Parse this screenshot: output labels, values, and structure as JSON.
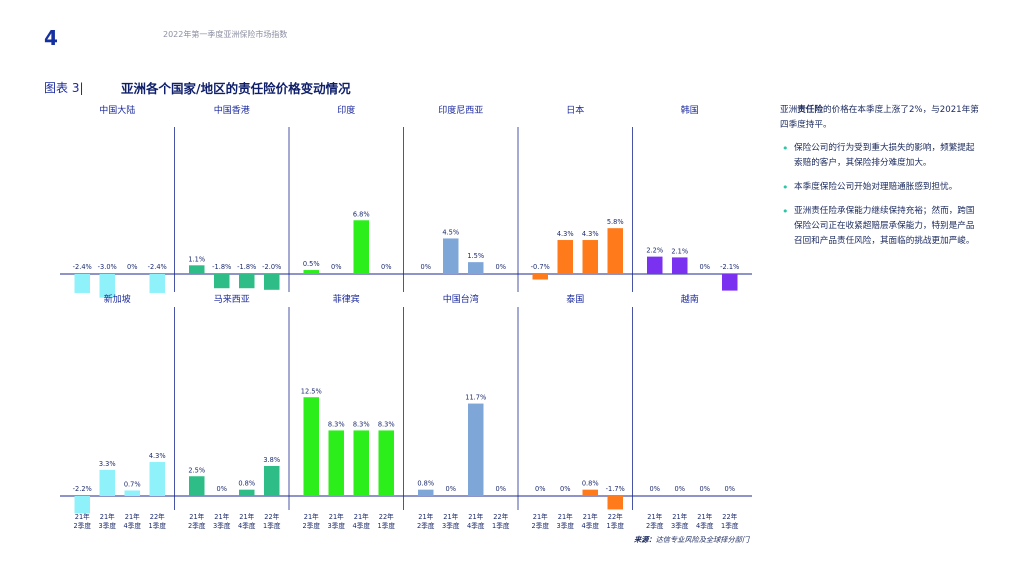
{
  "page": {
    "number": "4",
    "header": "2022年第一季度亚洲保险市场指数",
    "figure_label": "图表 3|",
    "figure_title": "亚洲各个国家/地区的责任险价格变动情况"
  },
  "sidebar": {
    "intro_pre": "亚洲",
    "intro_bold": "责任险",
    "intro_post": "的价格在本季度上涨了2%，与2021年第四季度持平。",
    "bullets": [
      "保险公司的行为受到重大损失的影响，频繁提起索赔的客户，其保险排分难度加大。",
      "本季度保险公司开始对理赔通胀感到担忧。",
      "亚洲责任险承保能力继续保持充裕；然而，跨国保险公司正在收紧超赔层承保能力，特别是产品召回和产品责任风险，其面临的挑战更加严峻。"
    ]
  },
  "source": {
    "label": "来源：",
    "text": "达信专业风险及全球择分部门"
  },
  "chart_data": {
    "type": "bar",
    "title": "亚洲各个国家/地区的责任险价格变动情况",
    "unit": "%",
    "categories": [
      "21年2季度",
      "21年3季度",
      "21年4季度",
      "22年1季度"
    ],
    "x_tick_lines": [
      [
        "21年",
        "2季度"
      ],
      [
        "21年",
        "3季度"
      ],
      [
        "21年",
        "4季度"
      ],
      [
        "22年",
        "1季度"
      ]
    ],
    "panels": [
      {
        "name": "中国大陆",
        "color": "#8ff2fa",
        "values": [
          -2.4,
          -3.0,
          0,
          -2.4
        ],
        "labels": [
          "-2.4%",
          "-3.0%",
          "0%",
          "-2.4%"
        ]
      },
      {
        "name": "中国香港",
        "color": "#2ebd86",
        "values": [
          1.1,
          -1.8,
          -1.8,
          -2.0
        ],
        "labels": [
          "1.1%",
          "-1.8%",
          "-1.8%",
          "-2.0%"
        ]
      },
      {
        "name": "印度",
        "color": "#2cee1a",
        "values": [
          0.5,
          0,
          6.8,
          0
        ],
        "labels": [
          "0.5%",
          "0%",
          "6.8%",
          "0%"
        ]
      },
      {
        "name": "印度尼西亚",
        "color": "#7ea7d8",
        "values": [
          0,
          4.5,
          1.5,
          0
        ],
        "labels": [
          "0%",
          "4.5%",
          "1.5%",
          "0%"
        ]
      },
      {
        "name": "日本",
        "color": "#ff7a1a",
        "values": [
          -0.7,
          4.3,
          4.3,
          5.8
        ],
        "labels": [
          "-0.7%",
          "4.3%",
          "4.3%",
          "5.8%"
        ]
      },
      {
        "name": "韩国",
        "color": "#7a32f0",
        "values": [
          2.2,
          2.1,
          0,
          -2.1
        ],
        "labels": [
          "2.2%",
          "2.1%",
          "0%",
          "-2.1%"
        ]
      },
      {
        "name": "新加坡",
        "color": "#8ff2fa",
        "values": [
          -2.2,
          3.3,
          0.7,
          4.3
        ],
        "labels": [
          "-2.2%",
          "3.3%",
          "0.7%",
          "4.3%"
        ]
      },
      {
        "name": "马来西亚",
        "color": "#2ebd86",
        "values": [
          2.5,
          0,
          0.8,
          3.8
        ],
        "labels": [
          "2.5%",
          "0%",
          "0.8%",
          "3.8%"
        ]
      },
      {
        "name": "菲律宾",
        "color": "#2cee1a",
        "values": [
          12.5,
          8.3,
          8.3,
          8.3
        ],
        "labels": [
          "12.5%",
          "8.3%",
          "8.3%",
          "8.3%"
        ]
      },
      {
        "name": "中国台湾",
        "color": "#7ea7d8",
        "values": [
          0.8,
          0,
          11.7,
          0
        ],
        "labels": [
          "0.8%",
          "0%",
          "11.7%",
          "0%"
        ]
      },
      {
        "name": "泰国",
        "color": "#ff7a1a",
        "values": [
          0,
          0,
          0.8,
          -1.7
        ],
        "labels": [
          "0%",
          "0%",
          "0.8%",
          "-1.7%"
        ]
      },
      {
        "name": "越南",
        "color": "#7a32f0",
        "values": [
          0,
          0,
          0,
          0
        ],
        "labels": [
          "0%",
          "0%",
          "0%",
          "0%"
        ]
      }
    ]
  }
}
